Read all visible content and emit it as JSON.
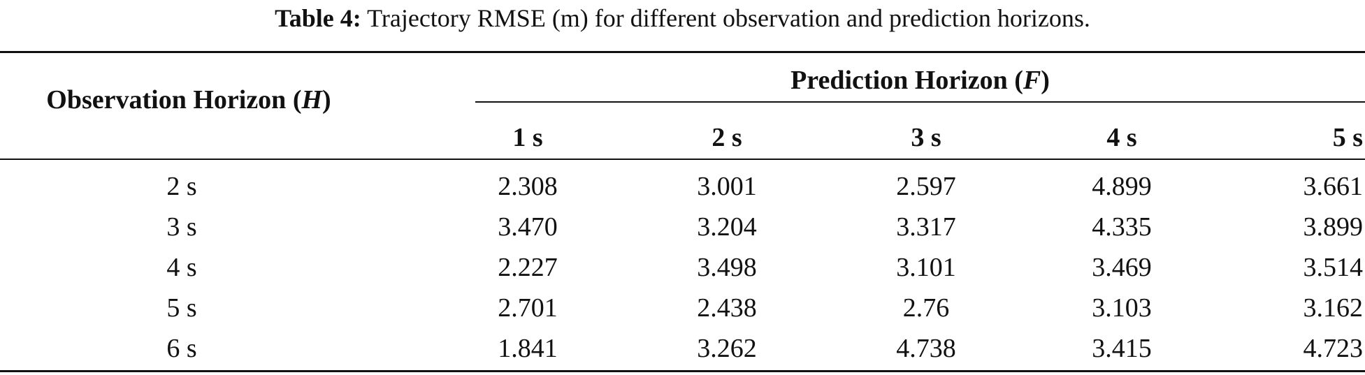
{
  "caption": {
    "label": "Table 4:",
    "text": "Trajectory RMSE (m) for different observation and prediction horizons."
  },
  "table": {
    "row_header": {
      "text": "Observation Horizon (",
      "var": "H",
      "close": ")"
    },
    "col_group_header": {
      "text": "Prediction Horizon (",
      "var": "F",
      "close": ")"
    },
    "columns": [
      "1 s",
      "2 s",
      "3 s",
      "4 s",
      "5 s"
    ],
    "rows": [
      {
        "label": "2 s",
        "values": [
          "2.308",
          "3.001",
          "2.597",
          "4.899",
          "3.661"
        ]
      },
      {
        "label": "3 s",
        "values": [
          "3.470",
          "3.204",
          "3.317",
          "4.335",
          "3.899"
        ]
      },
      {
        "label": "4 s",
        "values": [
          "2.227",
          "3.498",
          "3.101",
          "3.469",
          "3.514"
        ]
      },
      {
        "label": "5 s",
        "values": [
          "2.701",
          "2.438",
          "2.76",
          "3.103",
          "3.162"
        ]
      },
      {
        "label": "6 s",
        "values": [
          "1.841",
          "3.262",
          "4.738",
          "3.415",
          "4.723"
        ]
      }
    ]
  }
}
